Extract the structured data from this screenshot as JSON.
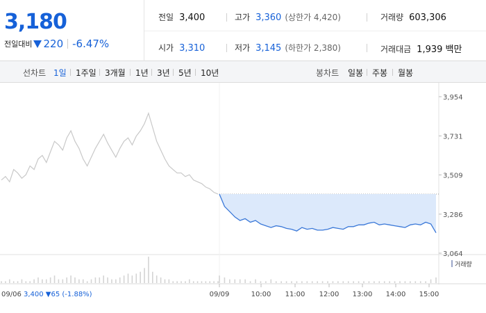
{
  "quote": {
    "price": "3,180",
    "change_label": "전일대비",
    "change_value": "220",
    "change_rate": "-6.47%",
    "prev_close_label": "전일",
    "prev_close": "3,400",
    "open_label": "시가",
    "open": "3,310",
    "high_label": "고가",
    "high": "3,360",
    "upper_limit": "(상한가 4,420)",
    "low_label": "저가",
    "low": "3,145",
    "lower_limit": "(하한가 2,380)",
    "volume_label": "거래량",
    "volume": "603,306",
    "amount_label": "거래대금",
    "amount": "1,939 백만"
  },
  "toolbar": {
    "line_label": "선차트",
    "periods": [
      "1일",
      "1주일",
      "3개월",
      "1년",
      "3년",
      "5년",
      "10년"
    ],
    "active_period": "1일",
    "candle_label": "봉차트",
    "candles": [
      "일봉",
      "주봉",
      "월봉"
    ]
  },
  "colors": {
    "accent": "#1661d8",
    "prev_day_line": "#c8c8c8",
    "today_line": "#3a78d8",
    "today_fill": "#dce9fb"
  },
  "chart_data": {
    "type": "line",
    "y_ticks": [
      "3,954",
      "3,731",
      "3,509",
      "3,286",
      "3,064"
    ],
    "ylim": [
      3064,
      3954
    ],
    "prev_close_ref": 3400,
    "x_ticks": [
      "09/06",
      "09/09",
      "10:00",
      "11:00",
      "12:00",
      "13:00",
      "14:00",
      "15:00"
    ],
    "volume_legend": "거래량",
    "prev_day_note": "09/06  3,400 ▼65 (-1.88%)",
    "series": [
      {
        "name": "09/06",
        "values": [
          3480,
          3500,
          3470,
          3540,
          3520,
          3490,
          3510,
          3560,
          3540,
          3600,
          3620,
          3580,
          3640,
          3700,
          3680,
          3650,
          3720,
          3760,
          3700,
          3660,
          3600,
          3560,
          3610,
          3660,
          3700,
          3740,
          3690,
          3650,
          3610,
          3660,
          3700,
          3720,
          3680,
          3730,
          3760,
          3800,
          3860,
          3780,
          3700,
          3650,
          3600,
          3560,
          3540,
          3520,
          3520,
          3500,
          3510,
          3480,
          3470,
          3460,
          3440,
          3430,
          3410,
          3400
        ]
      },
      {
        "name": "09/09",
        "values": [
          3400,
          3330,
          3300,
          3270,
          3250,
          3260,
          3240,
          3250,
          3230,
          3220,
          3210,
          3220,
          3215,
          3205,
          3200,
          3190,
          3210,
          3200,
          3205,
          3195,
          3195,
          3200,
          3210,
          3205,
          3200,
          3215,
          3215,
          3225,
          3225,
          3235,
          3240,
          3225,
          3230,
          3225,
          3220,
          3215,
          3210,
          3225,
          3230,
          3225,
          3240,
          3230,
          3180
        ]
      }
    ],
    "volume": {
      "name": "거래량",
      "prev_day": [
        1,
        1,
        2,
        1,
        1,
        2,
        1,
        1,
        2,
        3,
        2,
        2,
        3,
        4,
        2,
        2,
        3,
        4,
        3,
        2,
        2,
        1,
        2,
        3,
        3,
        4,
        3,
        2,
        2,
        3,
        4,
        5,
        4,
        5,
        6,
        8,
        14,
        6,
        4,
        3,
        2,
        2,
        1,
        1,
        1,
        1,
        2,
        1,
        1,
        1,
        1,
        1,
        1,
        1
      ],
      "today": [
        4,
        3,
        2,
        2,
        2,
        2,
        1,
        2,
        1,
        1,
        2,
        1,
        1,
        1,
        1,
        1,
        1,
        1,
        1,
        1,
        1,
        1,
        1,
        1,
        1,
        1,
        1,
        1,
        1,
        1,
        1,
        1,
        1,
        1,
        1,
        1,
        1,
        1,
        1,
        1,
        1,
        2,
        3
      ]
    }
  }
}
